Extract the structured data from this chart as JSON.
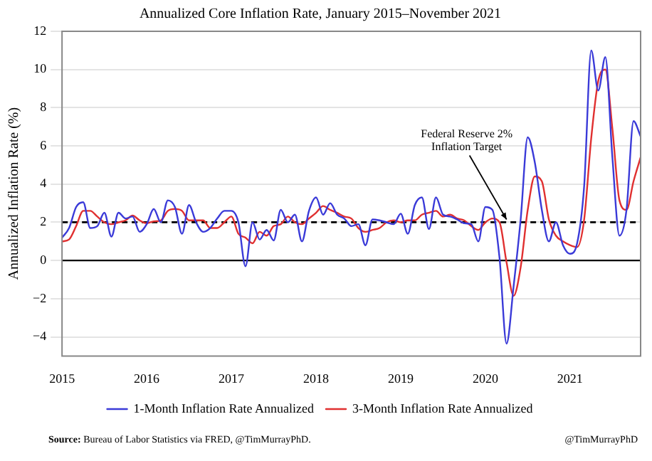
{
  "chart_data": {
    "type": "line",
    "title": "Annualized Core Inflation Rate, January 2015–November 2021",
    "ylabel": "Annualized Inflation Rate (%)",
    "x": [
      "2015-01",
      "2015-02",
      "2015-03",
      "2015-04",
      "2015-05",
      "2015-06",
      "2015-07",
      "2015-08",
      "2015-09",
      "2015-10",
      "2015-11",
      "2015-12",
      "2016-01",
      "2016-02",
      "2016-03",
      "2016-04",
      "2016-05",
      "2016-06",
      "2016-07",
      "2016-08",
      "2016-09",
      "2016-10",
      "2016-11",
      "2016-12",
      "2017-01",
      "2017-02",
      "2017-03",
      "2017-04",
      "2017-05",
      "2017-06",
      "2017-07",
      "2017-08",
      "2017-09",
      "2017-10",
      "2017-11",
      "2017-12",
      "2018-01",
      "2018-02",
      "2018-03",
      "2018-04",
      "2018-05",
      "2018-06",
      "2018-07",
      "2018-08",
      "2018-09",
      "2018-10",
      "2018-11",
      "2018-12",
      "2019-01",
      "2019-02",
      "2019-03",
      "2019-04",
      "2019-05",
      "2019-06",
      "2019-07",
      "2019-08",
      "2019-09",
      "2019-10",
      "2019-11",
      "2019-12",
      "2020-01",
      "2020-02",
      "2020-03",
      "2020-04",
      "2020-05",
      "2020-06",
      "2020-07",
      "2020-08",
      "2020-09",
      "2020-10",
      "2020-11",
      "2020-12",
      "2021-01",
      "2021-02",
      "2021-03",
      "2021-04",
      "2021-05",
      "2021-06",
      "2021-07",
      "2021-08",
      "2021-09",
      "2021-10",
      "2021-11"
    ],
    "series": [
      {
        "name": "1-Month Inflation Rate Annualized",
        "color": "#3a3ad8",
        "values": [
          1.2,
          1.7,
          2.8,
          3.05,
          1.7,
          1.8,
          2.5,
          1.25,
          2.5,
          2.2,
          2.3,
          1.5,
          1.9,
          2.7,
          2.0,
          3.15,
          2.8,
          1.4,
          2.9,
          2.0,
          1.5,
          1.7,
          2.2,
          2.6,
          2.6,
          2.0,
          -0.3,
          2.0,
          1.1,
          1.6,
          1.05,
          2.65,
          2.0,
          2.4,
          1.0,
          2.6,
          3.3,
          2.4,
          3.0,
          2.4,
          2.2,
          1.8,
          1.9,
          0.8,
          2.15,
          2.1,
          2.0,
          1.9,
          2.45,
          1.4,
          2.9,
          3.3,
          1.65,
          3.3,
          2.4,
          2.3,
          2.15,
          1.95,
          1.9,
          1.0,
          2.8,
          2.65,
          0.15,
          -4.35,
          -1.35,
          2.15,
          6.45,
          5.15,
          2.65,
          1.0,
          2.0,
          0.8,
          0.35,
          0.9,
          3.9,
          11.0,
          8.9,
          10.65,
          5.4,
          1.3,
          2.65,
          7.3,
          6.5
        ]
      },
      {
        "name": "3-Month Inflation Rate Annualized",
        "color": "#e03030",
        "values": [
          1.0,
          1.1,
          1.8,
          2.6,
          2.6,
          2.3,
          2.0,
          1.9,
          2.0,
          2.1,
          2.35,
          2.1,
          1.95,
          2.05,
          2.1,
          2.6,
          2.7,
          2.6,
          2.1,
          2.1,
          2.1,
          1.7,
          1.7,
          2.0,
          2.3,
          1.4,
          1.2,
          0.9,
          1.5,
          1.3,
          1.8,
          1.9,
          2.3,
          2.0,
          1.9,
          2.2,
          2.5,
          2.85,
          2.65,
          2.5,
          2.3,
          2.2,
          1.7,
          1.5,
          1.6,
          1.7,
          2.0,
          2.1,
          2.0,
          2.1,
          2.1,
          2.4,
          2.5,
          2.6,
          2.3,
          2.4,
          2.2,
          2.1,
          1.8,
          1.6,
          2.0,
          2.2,
          2.0,
          -0.1,
          -1.85,
          -0.35,
          2.65,
          4.4,
          4.15,
          2.15,
          1.3,
          1.0,
          0.8,
          0.7,
          2.15,
          6.4,
          9.4,
          10.0,
          6.9,
          3.15,
          2.65,
          4.15,
          5.4
        ]
      }
    ],
    "xlim": [
      "2015-01",
      "2021-11"
    ],
    "xticks": [
      "2015",
      "2016",
      "2017",
      "2018",
      "2019",
      "2020",
      "2021"
    ],
    "ylim": [
      -5,
      12
    ],
    "yticks": [
      -4,
      -2,
      0,
      2,
      4,
      6,
      8,
      10,
      12
    ],
    "ref_lines": [
      {
        "axis": "y",
        "value": 2,
        "color": "#000000",
        "line_style": "dashed"
      },
      {
        "axis": "y",
        "value": 0,
        "color": "#000000",
        "line_style": "solid"
      }
    ],
    "annotations": [
      {
        "text": "Federal Reserve 2% Inflation Target",
        "x": "2020-04",
        "y": 2
      },
      "Source: Bureau of Labor Statistics via FRED, @TimMurrayPhD.",
      "@TimMurrayPhD"
    ],
    "grid": "y",
    "legend": "bottom",
    "marker": "none",
    "line_style": "solid"
  }
}
